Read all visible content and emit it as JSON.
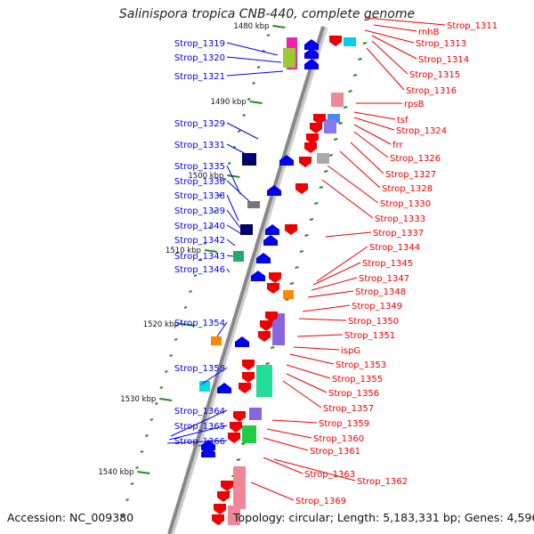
{
  "title": "Salinispora tropica CNB-440, complete genome",
  "footer": {
    "accession": "Accession: NC_009380",
    "summary": "Topology: circular; Length: 5,183,331 bp; Genes: 4,596"
  },
  "colors": {
    "forward": "#0000ee",
    "reverse": "#ee0000",
    "backbone": "#888888",
    "ticks": "#228b22"
  },
  "kbp_marks": [
    "1480 kbp",
    "1490 kbp",
    "1500 kbp",
    "1510 kbp",
    "1520 kbp",
    "1530 kbp",
    "1540 kbp"
  ],
  "forward_labels": [
    "Strop_1319",
    "Strop_1320",
    "Strop_1321",
    "Strop_1329",
    "Strop_1331",
    "Strop_1335",
    "Strop_1336",
    "Strop_1338",
    "Strop_1339",
    "Strop_1340",
    "Strop_1342",
    "Strop_1343",
    "Strop_1346",
    "Strop_1354",
    "Strop_1358",
    "Strop_1364",
    "Strop_1365",
    "Strop_1366"
  ],
  "reverse_labels": [
    "Strop_1311",
    "rnhB",
    "Strop_1313",
    "Strop_1314",
    "Strop_1315",
    "Strop_1316",
    "rpsB",
    "tsf",
    "Strop_1324",
    "frr",
    "Strop_1326",
    "Strop_1327",
    "Strop_1328",
    "Strop_1330",
    "Strop_1333",
    "Strop_1337",
    "Strop_1344",
    "Strop_1345",
    "Strop_1347",
    "Strop_1348",
    "Strop_1349",
    "Strop_1350",
    "Strop_1351",
    "ispG",
    "Strop_1353",
    "Strop_1355",
    "Strop_1356",
    "Strop_1357",
    "Strop_1359",
    "Strop_1360",
    "Strop_1361",
    "Strop_1363",
    "Strop_1362",
    "Strop_1369"
  ]
}
